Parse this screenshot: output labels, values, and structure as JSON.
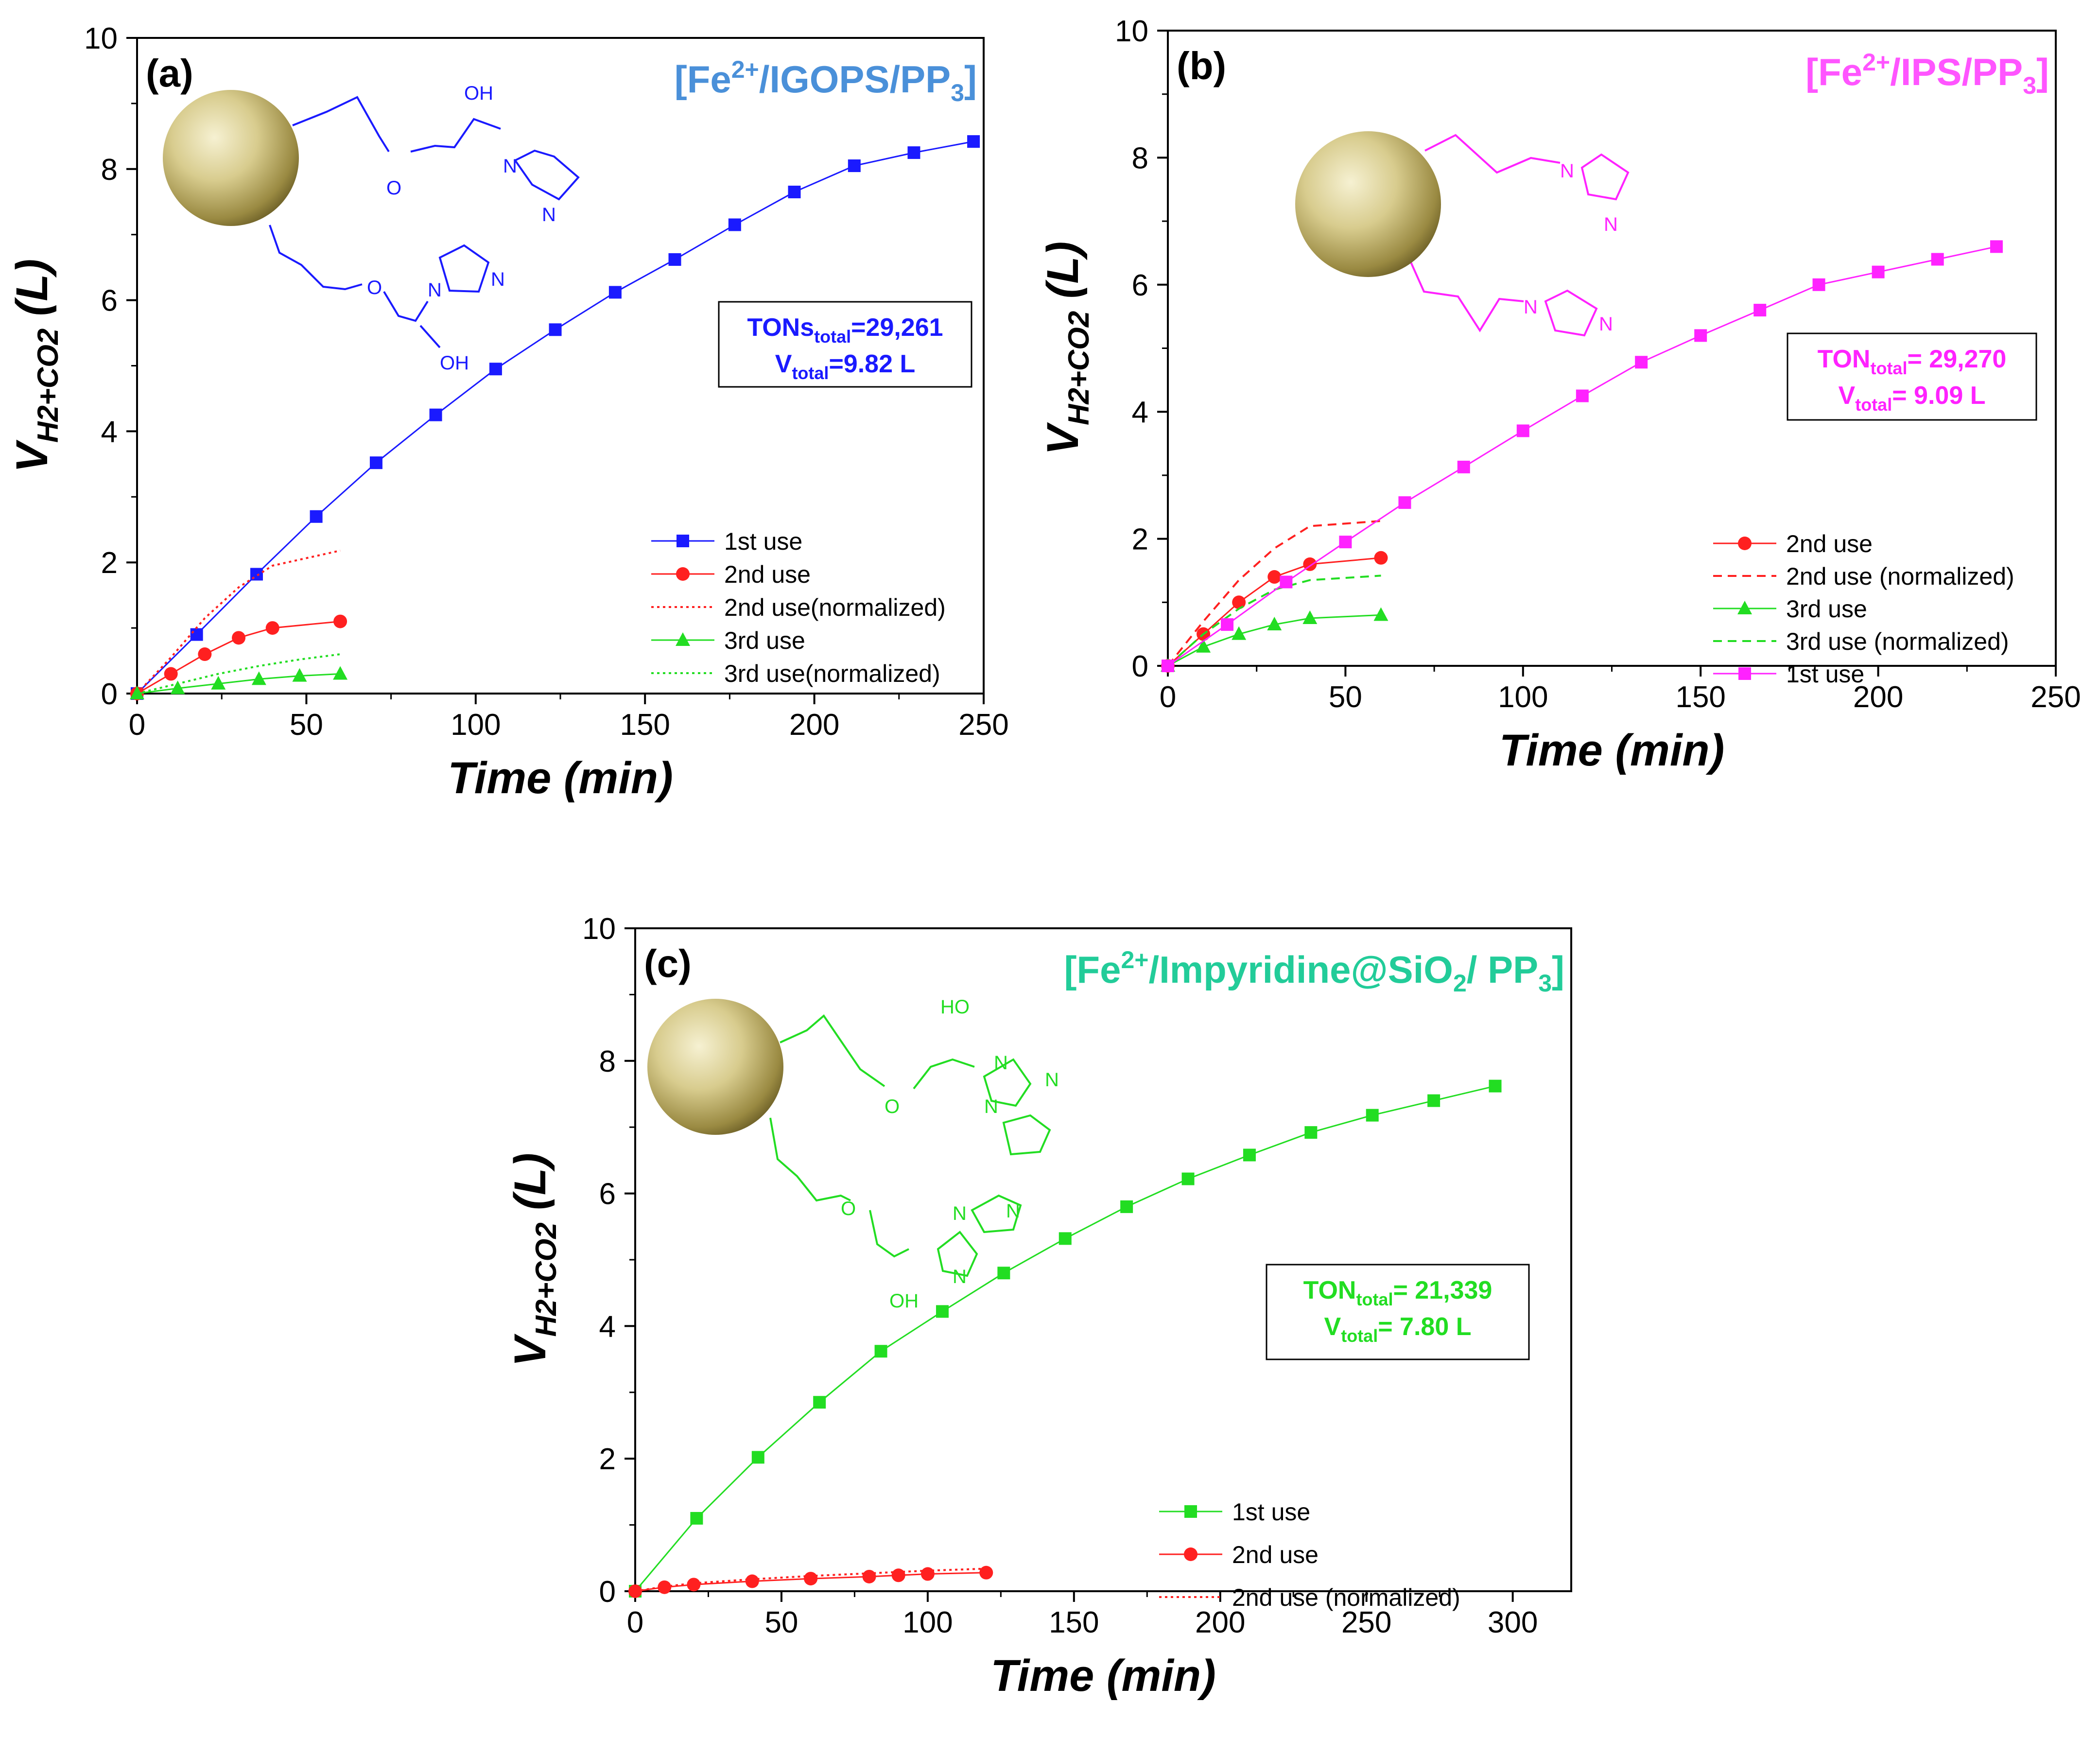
{
  "chart_data": [
    {
      "type": "line",
      "panel_label": "(a)",
      "catalyst": {
        "prefix": "[Fe",
        "sup": "2+",
        "mid": "/IGOPS/PP",
        "sub": "3",
        "suffix": "]",
        "color": "#4A90D9"
      },
      "ylabel": {
        "main": "V",
        "sub": "H2+CO2",
        "rest": " (L)"
      },
      "xlabel": "Time (min)",
      "xlim": [
        0,
        250
      ],
      "ylim": [
        0,
        10
      ],
      "xticks": [
        "0",
        "50",
        "100",
        "150",
        "200",
        "250"
      ],
      "yticks": [
        "0",
        "2",
        "4",
        "6",
        "8",
        "10"
      ],
      "info_color": "#1a1aff",
      "info_lines": [
        {
          "main": "TONs",
          "sub": "total",
          "rest": "=29,261"
        },
        {
          "main": "V",
          "sub": "total",
          "rest": "=9.82 L"
        }
      ],
      "structure_color": "#1a1aff",
      "structure_labels": [
        "OH",
        "N",
        "N",
        "O",
        "O",
        "N",
        "N",
        "OH"
      ],
      "legend": [
        "1st use",
        "2nd use",
        "2nd use(normalized)",
        "3rd use",
        "3rd use(normalized)"
      ],
      "series": [
        {
          "name": "1st use",
          "color": "#1a1aff",
          "marker": "square",
          "dash": "none",
          "x": [
            0,
            17.6,
            35.3,
            52.9,
            70.6,
            88.2,
            105.9,
            123.5,
            141.2,
            158.8,
            176.5,
            194.1,
            211.8,
            229.4,
            247
          ],
          "y": [
            0,
            0.9,
            1.82,
            2.7,
            3.52,
            4.25,
            4.95,
            5.55,
            6.12,
            6.62,
            7.15,
            7.65,
            8.05,
            8.25,
            8.42
          ]
        },
        {
          "name": "2nd use",
          "color": "#ff2020",
          "marker": "circle",
          "dash": "none",
          "x": [
            0,
            10,
            20,
            30,
            40,
            60
          ],
          "y": [
            0,
            0.3,
            0.6,
            0.85,
            1.0,
            1.1
          ]
        },
        {
          "name": "2nd use(normalized)",
          "color": "#ff2020",
          "marker": "none",
          "dash": "dot",
          "x": [
            0,
            10,
            20,
            30,
            40,
            60
          ],
          "y": [
            0,
            0.55,
            1.15,
            1.62,
            1.95,
            2.18
          ]
        },
        {
          "name": "3rd use",
          "color": "#22dd22",
          "marker": "triangle",
          "dash": "none",
          "x": [
            0,
            12,
            24,
            36,
            48,
            60
          ],
          "y": [
            0,
            0.08,
            0.15,
            0.22,
            0.27,
            0.3
          ]
        },
        {
          "name": "3rd use(normalized)",
          "color": "#22dd22",
          "marker": "none",
          "dash": "dot",
          "x": [
            0,
            12,
            24,
            36,
            48,
            60
          ],
          "y": [
            0,
            0.15,
            0.3,
            0.42,
            0.52,
            0.6
          ]
        }
      ]
    },
    {
      "type": "line",
      "panel_label": "(b)",
      "catalyst": {
        "prefix": "[Fe",
        "sup": "2+",
        "mid": "/IPS/PP",
        "sub": "3",
        "suffix": "]",
        "color": "#ff55ff"
      },
      "ylabel": {
        "main": "V",
        "sub": "H2+CO2",
        "rest": " (L)"
      },
      "xlabel": "Time (min)",
      "xlim": [
        0,
        250
      ],
      "ylim": [
        0,
        10
      ],
      "xticks": [
        "0",
        "50",
        "100",
        "150",
        "200",
        "250"
      ],
      "yticks": [
        "0",
        "2",
        "4",
        "6",
        "8",
        "10"
      ],
      "info_color": "#ff22ff",
      "info_lines": [
        {
          "main": "TON",
          "sub": "total",
          "rest": "= 29,270"
        },
        {
          "main": "V",
          "sub": "total",
          "rest": "= 9.09 L"
        }
      ],
      "structure_color": "#ff22ff",
      "structure_labels": [
        "N",
        "N",
        "N",
        "N"
      ],
      "legend": [
        "2nd use",
        "2nd use (normalized)",
        "3rd use",
        "3rd use (normalized)",
        "1st use"
      ],
      "series": [
        {
          "name": "2nd use",
          "color": "#ff2020",
          "marker": "circle",
          "dash": "none",
          "x": [
            0,
            10,
            20,
            30,
            40,
            60
          ],
          "y": [
            0,
            0.5,
            1.0,
            1.4,
            1.6,
            1.7
          ]
        },
        {
          "name": "2nd use (normalized)",
          "color": "#ff2020",
          "marker": "none",
          "dash": "dash",
          "x": [
            0,
            10,
            20,
            30,
            40,
            60
          ],
          "y": [
            0,
            0.7,
            1.35,
            1.85,
            2.2,
            2.28
          ]
        },
        {
          "name": "3rd use",
          "color": "#22dd22",
          "marker": "triangle",
          "dash": "none",
          "x": [
            0,
            10,
            20,
            30,
            40,
            60
          ],
          "y": [
            0,
            0.3,
            0.5,
            0.65,
            0.75,
            0.8
          ]
        },
        {
          "name": "3rd use (normalized)",
          "color": "#22dd22",
          "marker": "none",
          "dash": "dash",
          "x": [
            0,
            10,
            20,
            30,
            40,
            60
          ],
          "y": [
            0,
            0.5,
            0.9,
            1.2,
            1.35,
            1.42
          ]
        },
        {
          "name": "1st use",
          "color": "#ff22ff",
          "marker": "square",
          "dash": "none",
          "x": [
            0,
            16.7,
            33.3,
            50,
            66.7,
            83.3,
            100,
            116.7,
            133.3,
            150,
            166.7,
            183.3,
            200,
            216.7,
            233.3
          ],
          "y": [
            0,
            0.65,
            1.32,
            1.95,
            2.57,
            3.13,
            3.7,
            4.25,
            4.78,
            5.2,
            5.6,
            6.0,
            6.2,
            6.4,
            6.6
          ]
        }
      ]
    },
    {
      "type": "line",
      "panel_label": "(c)",
      "catalyst": {
        "prefix": "[Fe",
        "sup": "2+",
        "mid": "/Impyridine@SiO",
        "sub": "2",
        "mid2": "/ PP",
        "sub2": "3",
        "suffix": "]",
        "color": "#22cc99"
      },
      "ylabel": {
        "main": "V",
        "sub": "H2+CO2",
        "rest": " (L)"
      },
      "xlabel": "Time (min)",
      "xlim": [
        0,
        320
      ],
      "ylim": [
        0,
        10
      ],
      "xticks": [
        "0",
        "50",
        "100",
        "150",
        "200",
        "250",
        "300"
      ],
      "yticks": [
        "0",
        "2",
        "4",
        "6",
        "8",
        "10"
      ],
      "info_color": "#22dd22",
      "info_lines": [
        {
          "main": "TON",
          "sub": "total",
          "rest": "= 21,339"
        },
        {
          "main": "V",
          "sub": "total",
          "rest": "= 7.80 L"
        }
      ],
      "structure_color": "#22dd22",
      "structure_labels": [
        "HO",
        "N",
        "N",
        "N",
        "O",
        "O",
        "N",
        "N",
        "N",
        "OH"
      ],
      "legend": [
        "1st use",
        "2nd use",
        "2nd use (normalized)"
      ],
      "series": [
        {
          "name": "1st use",
          "color": "#22dd22",
          "marker": "square",
          "dash": "none",
          "x": [
            0,
            21,
            42,
            63,
            84,
            105,
            126,
            147,
            168,
            189,
            210,
            231,
            252,
            273,
            294
          ],
          "y": [
            0,
            1.1,
            2.02,
            2.85,
            3.62,
            4.22,
            4.8,
            5.32,
            5.8,
            6.22,
            6.58,
            6.92,
            7.18,
            7.4,
            7.62
          ]
        },
        {
          "name": "2nd use",
          "color": "#ff2020",
          "marker": "circle",
          "dash": "none",
          "x": [
            0,
            10,
            20,
            40,
            60,
            80,
            90,
            100,
            120
          ],
          "y": [
            0,
            0.06,
            0.1,
            0.15,
            0.19,
            0.22,
            0.24,
            0.26,
            0.28
          ]
        },
        {
          "name": "2nd use (normalized)",
          "color": "#ff2020",
          "marker": "none",
          "dash": "dot",
          "x": [
            0,
            10,
            20,
            40,
            60,
            80,
            90,
            100,
            120
          ],
          "y": [
            0,
            0.07,
            0.12,
            0.18,
            0.23,
            0.27,
            0.29,
            0.31,
            0.34
          ]
        }
      ]
    }
  ]
}
